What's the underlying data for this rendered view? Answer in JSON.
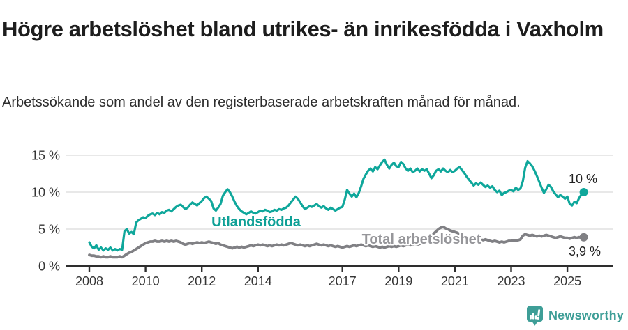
{
  "header": {
    "title": "Högre arbetslöshet bland utrikes- än inrikesfödda i Vaxholm",
    "subtitle": "Arbetssökande som andel av den registerbaserade arbetskraften månad för månad."
  },
  "chart_data": {
    "type": "line",
    "title": "Arbetssökande som andel av den registerbaserade arbetskraften månad för månad",
    "xlabel": "",
    "ylabel": "",
    "x_unit": "year (monthly values)",
    "x_start": 2008.0,
    "x_step_months": 1,
    "ylim": [
      0,
      16
    ],
    "grid": true,
    "y_ticks": [
      {
        "value": 0,
        "label": "0 %"
      },
      {
        "value": 5,
        "label": "5 %"
      },
      {
        "value": 10,
        "label": "10 %"
      },
      {
        "value": 15,
        "label": "15 %"
      }
    ],
    "x_ticks": [
      {
        "value": 2008,
        "label": "2008"
      },
      {
        "value": 2010,
        "label": "2010"
      },
      {
        "value": 2012,
        "label": "2012"
      },
      {
        "value": 2014,
        "label": "2014"
      },
      {
        "value": 2017,
        "label": "2017"
      },
      {
        "value": 2019,
        "label": "2019"
      },
      {
        "value": 2021,
        "label": "2021"
      },
      {
        "value": 2023,
        "label": "2023"
      },
      {
        "value": 2025,
        "label": "2025"
      }
    ],
    "end_label_color": "#222222",
    "axis_color": "#2e2e2e",
    "gridline_color": "#d9d9d9",
    "series": [
      {
        "name": "Utlandsfödda",
        "color": "#0fa79b",
        "label_color": "#0ea096",
        "end_label": "10 %",
        "end_value": 10.0,
        "values": [
          3.2,
          2.6,
          2.4,
          2.8,
          2.2,
          2.5,
          2.1,
          2.4,
          2.2,
          2.5,
          2.1,
          2.3,
          2.1,
          2.3,
          2.2,
          4.7,
          5.0,
          4.4,
          4.6,
          4.3,
          5.9,
          6.2,
          6.4,
          6.6,
          6.5,
          6.8,
          7.0,
          7.1,
          6.9,
          7.2,
          7.0,
          7.3,
          7.2,
          7.5,
          7.6,
          7.4,
          7.7,
          8.0,
          8.2,
          8.3,
          8.0,
          7.7,
          7.9,
          8.3,
          8.6,
          8.4,
          8.2,
          8.5,
          8.8,
          9.2,
          9.4,
          9.1,
          8.8,
          7.8,
          7.5,
          7.9,
          8.4,
          9.5,
          10.0,
          10.4,
          10.0,
          9.4,
          8.7,
          8.1,
          7.7,
          7.4,
          7.2,
          7.0,
          7.2,
          7.4,
          7.2,
          7.1,
          7.3,
          7.5,
          7.4,
          7.6,
          7.5,
          7.3,
          7.4,
          7.6,
          7.5,
          7.7,
          7.6,
          7.8,
          7.9,
          8.2,
          8.6,
          9.0,
          9.4,
          9.1,
          8.6,
          8.1,
          7.7,
          7.9,
          8.1,
          8.0,
          8.2,
          8.4,
          8.1,
          7.9,
          8.1,
          7.8,
          7.6,
          7.9,
          7.7,
          7.5,
          7.7,
          7.9,
          8.0,
          9.0,
          10.3,
          9.8,
          9.4,
          9.8,
          9.3,
          9.9,
          10.8,
          11.8,
          12.4,
          12.9,
          13.2,
          12.8,
          13.4,
          13.1,
          13.6,
          14.1,
          14.4,
          13.7,
          13.2,
          13.7,
          14.0,
          13.5,
          13.4,
          14.1,
          13.8,
          13.2,
          12.9,
          13.2,
          12.7,
          12.9,
          13.2,
          12.8,
          13.1,
          12.9,
          13.1,
          12.5,
          11.9,
          12.3,
          12.9,
          13.1,
          12.8,
          13.2,
          12.9,
          12.7,
          13.0,
          12.7,
          12.9,
          13.2,
          13.4,
          13.0,
          12.6,
          12.1,
          11.7,
          11.3,
          10.9,
          11.2,
          11.0,
          11.3,
          11.0,
          10.7,
          10.9,
          10.6,
          10.8,
          10.3,
          10.0,
          10.2,
          9.6,
          9.9,
          10.0,
          10.2,
          10.3,
          10.1,
          10.6,
          10.3,
          10.5,
          11.5,
          13.3,
          14.2,
          13.9,
          13.5,
          12.9,
          12.2,
          11.4,
          10.6,
          9.9,
          10.4,
          11.0,
          10.7,
          10.1,
          9.7,
          9.3,
          9.6,
          9.4,
          9.1,
          9.4,
          8.4,
          8.2,
          8.7,
          8.5,
          9.2,
          9.7,
          10.0
        ]
      },
      {
        "name": "Total arbetslöshet",
        "color": "#808084",
        "label_color": "#96969a",
        "end_label": "3,9 %",
        "end_value": 3.9,
        "values": [
          1.5,
          1.4,
          1.4,
          1.3,
          1.3,
          1.2,
          1.3,
          1.2,
          1.2,
          1.3,
          1.2,
          1.2,
          1.2,
          1.3,
          1.2,
          1.4,
          1.6,
          1.8,
          1.9,
          2.1,
          2.3,
          2.5,
          2.7,
          2.9,
          3.1,
          3.2,
          3.3,
          3.3,
          3.4,
          3.3,
          3.3,
          3.4,
          3.3,
          3.4,
          3.3,
          3.4,
          3.3,
          3.4,
          3.3,
          3.2,
          3.0,
          2.9,
          3.0,
          3.1,
          3.0,
          3.1,
          3.2,
          3.1,
          3.2,
          3.1,
          3.2,
          3.3,
          3.2,
          3.1,
          3.0,
          3.1,
          2.9,
          2.8,
          2.7,
          2.6,
          2.5,
          2.4,
          2.5,
          2.6,
          2.5,
          2.6,
          2.5,
          2.6,
          2.7,
          2.8,
          2.7,
          2.8,
          2.9,
          2.8,
          2.9,
          2.8,
          2.7,
          2.8,
          2.7,
          2.8,
          2.9,
          2.8,
          2.9,
          2.8,
          2.9,
          3.0,
          3.1,
          3.0,
          2.9,
          2.8,
          2.9,
          2.8,
          2.7,
          2.8,
          2.7,
          2.8,
          2.9,
          3.0,
          2.9,
          2.8,
          2.9,
          2.8,
          2.7,
          2.8,
          2.7,
          2.6,
          2.7,
          2.6,
          2.5,
          2.6,
          2.7,
          2.6,
          2.7,
          2.8,
          2.7,
          2.8,
          2.9,
          2.8,
          2.7,
          2.8,
          2.7,
          2.6,
          2.7,
          2.6,
          2.5,
          2.6,
          2.5,
          2.6,
          2.7,
          2.6,
          2.7,
          2.6,
          2.7,
          2.8,
          2.7,
          2.8,
          2.9,
          2.8,
          2.9,
          3.0,
          2.9,
          3.0,
          3.1,
          3.2,
          3.4,
          3.7,
          4.0,
          4.4,
          4.7,
          5.0,
          5.2,
          5.3,
          5.1,
          5.0,
          4.8,
          4.7,
          4.6,
          4.5,
          4.3,
          4.2,
          4.0,
          3.9,
          3.8,
          3.7,
          3.6,
          3.6,
          3.5,
          3.6,
          3.5,
          3.6,
          3.5,
          3.4,
          3.3,
          3.4,
          3.3,
          3.2,
          3.3,
          3.2,
          3.3,
          3.4,
          3.4,
          3.5,
          3.4,
          3.5,
          3.6,
          4.1,
          4.3,
          4.2,
          4.1,
          4.2,
          4.1,
          4.0,
          4.1,
          4.0,
          4.1,
          4.2,
          4.1,
          4.0,
          3.9,
          3.8,
          3.9,
          4.0,
          3.9,
          3.8,
          3.8,
          3.7,
          3.8,
          3.9,
          3.8,
          3.9,
          3.8,
          3.9
        ]
      }
    ],
    "legend_position": "inline-labels"
  },
  "branding": {
    "logo_text": "Newsworthy",
    "logo_color": "#3e9e97",
    "logo_icon": "bar-chart-speech-bubble-icon"
  }
}
